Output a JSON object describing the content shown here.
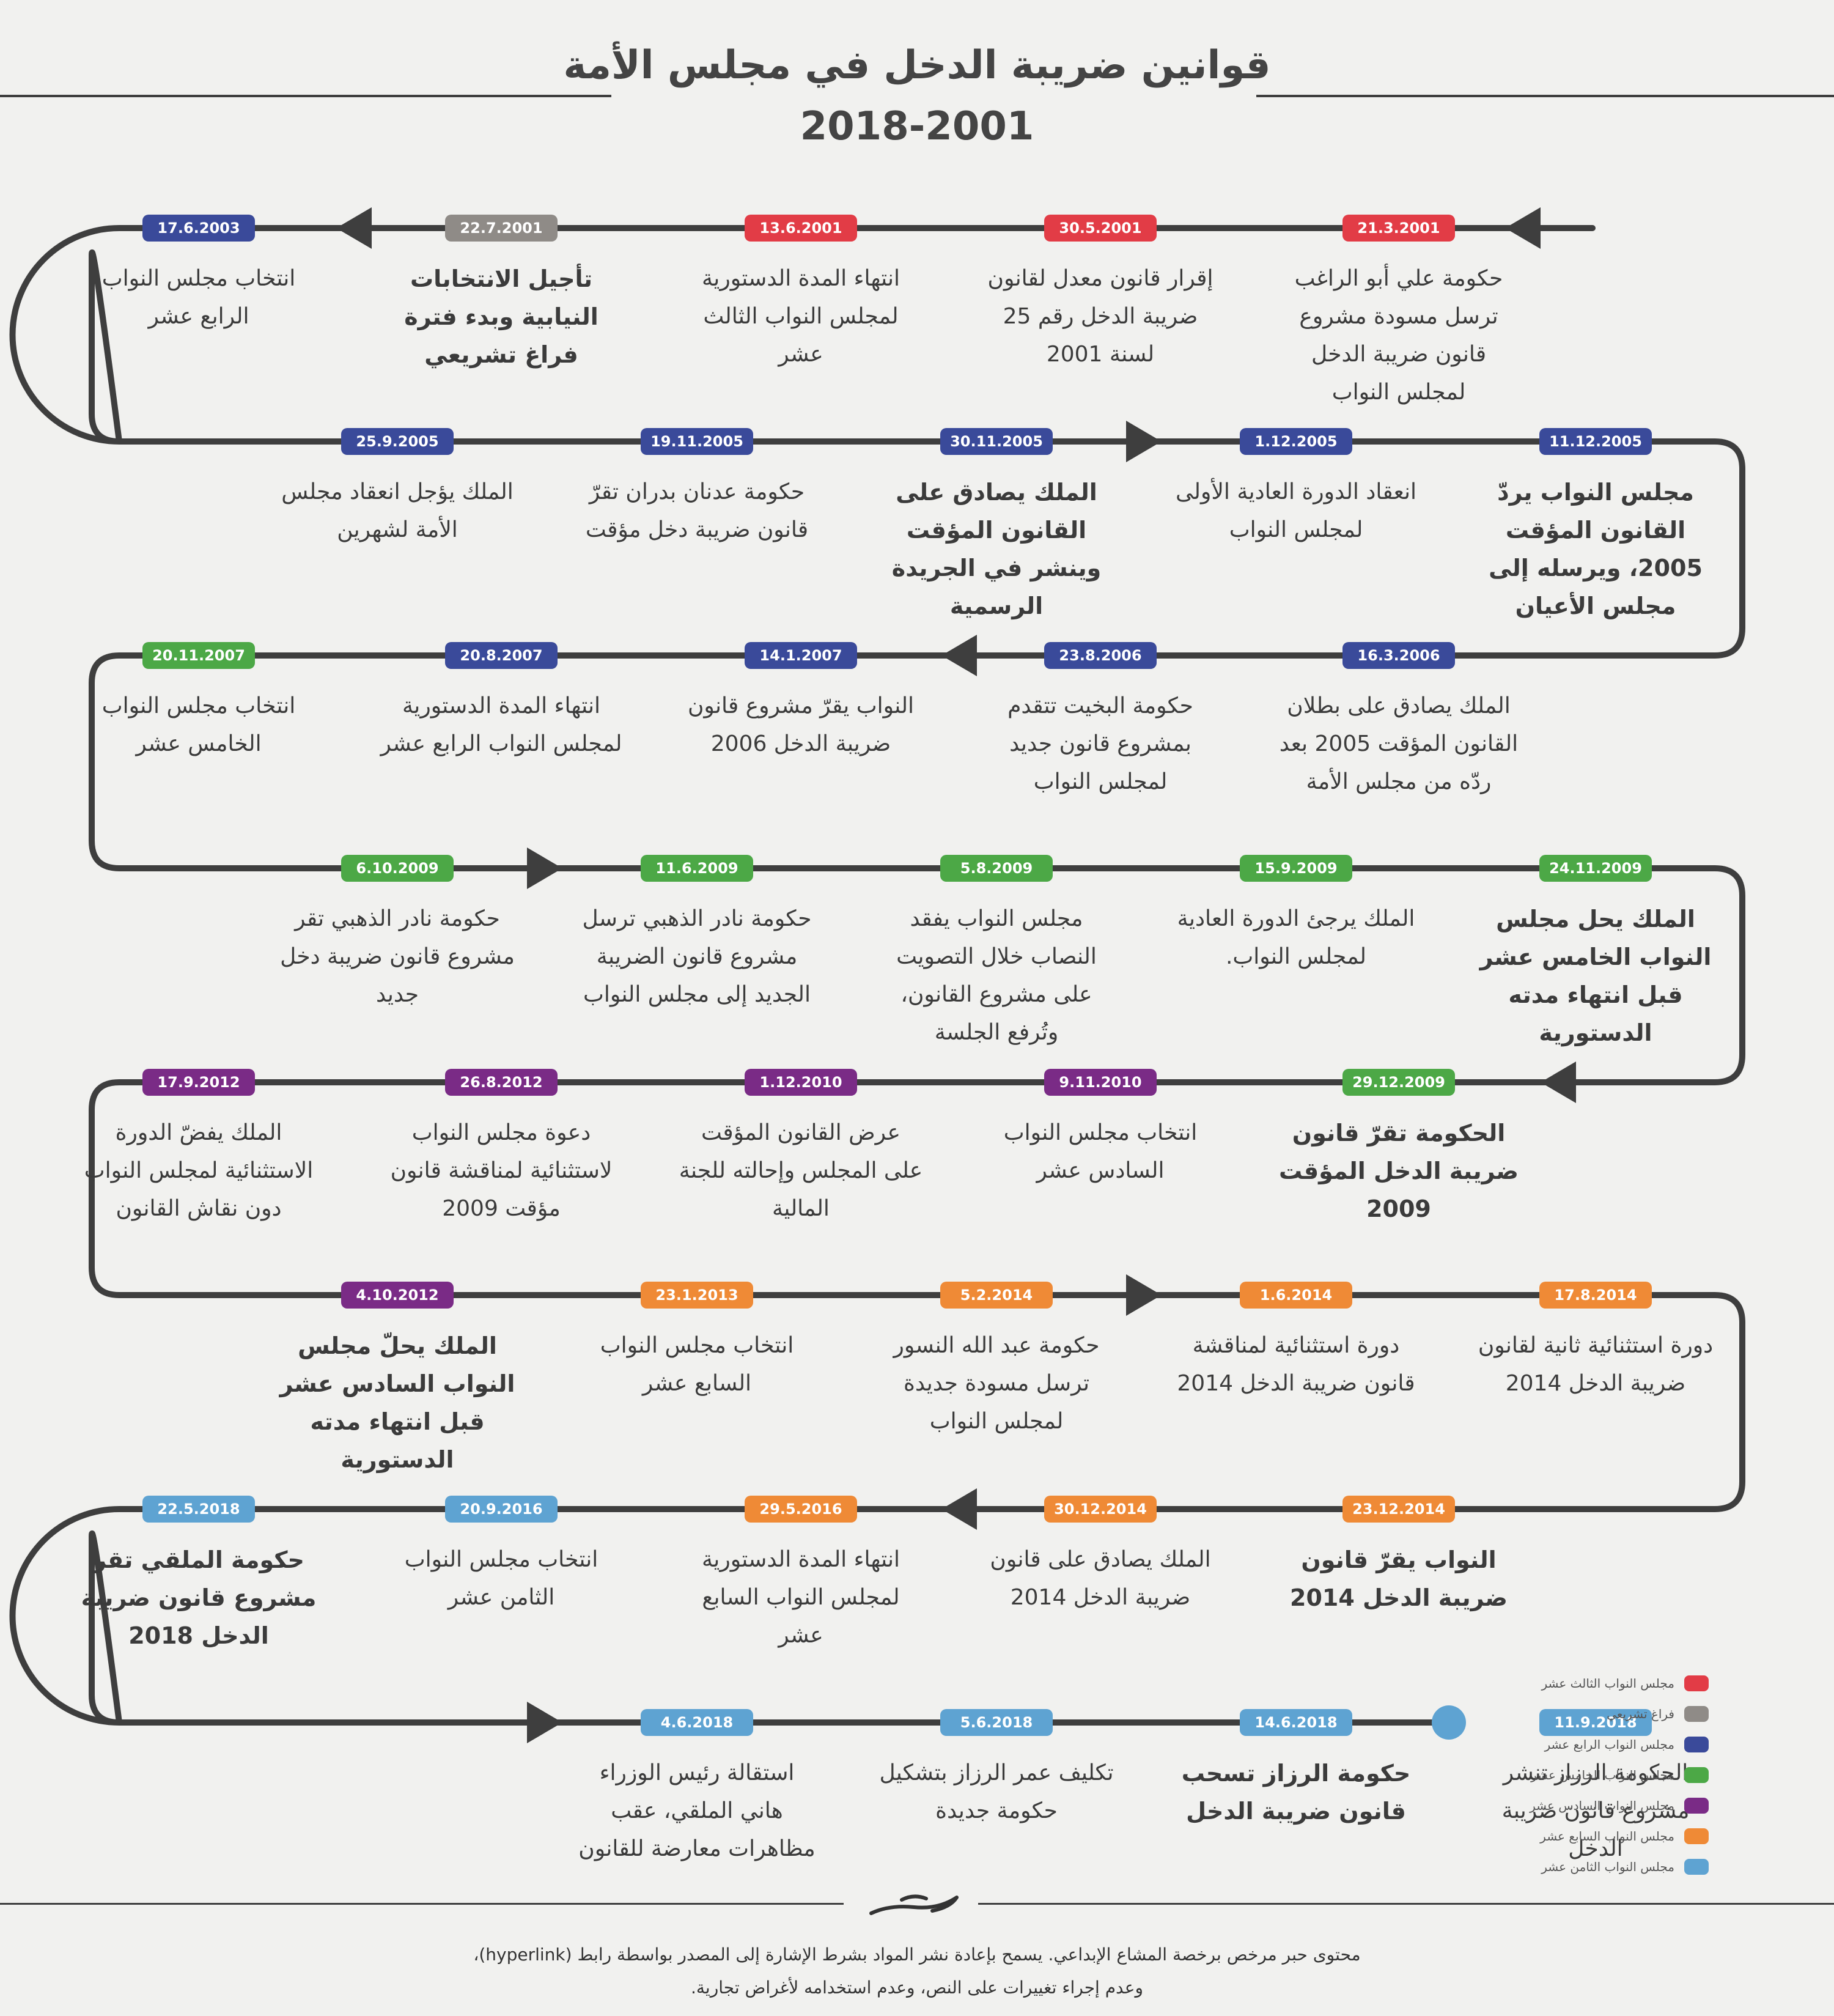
{
  "title_line1": "قوانين ضريبة الدخل في مجلس الأمة",
  "title_line2": "2018-2001",
  "colors": {
    "red": "#e23c46",
    "gray": "#8f8b87",
    "navy": "#3a4a9a",
    "green": "#4ca846",
    "purple": "#7a2b86",
    "orange": "#ef8a36",
    "lightblue": "#5ea3d2"
  },
  "rows": [
    {
      "dir": "left",
      "events": [
        {
          "date": "21.3.2001",
          "color": "red",
          "text": "حكومة علي أبو الراغب ترسل مسودة مشروع قانون ضريبة الدخل لمجلس النواب",
          "bold": false
        },
        {
          "date": "30.5.2001",
          "color": "red",
          "text": "إقرار قانون معدل لقانون ضريبة الدخل رقم 25 لسنة 2001",
          "bold": false
        },
        {
          "date": "13.6.2001",
          "color": "red",
          "text": "انتهاء المدة الدستورية لمجلس النواب الثالث عشر",
          "bold": false
        },
        {
          "date": "22.7.2001",
          "color": "gray",
          "text": "تأجيل الانتخابات النيابية وبدء فترة فراغ تشريعي",
          "bold": true
        },
        {
          "date": "17.6.2003",
          "color": "navy",
          "text": "انتخاب مجلس النواب الرابع عشر",
          "bold": false
        }
      ]
    },
    {
      "dir": "right",
      "events": [
        {
          "date": "11.12.2005",
          "color": "navy",
          "text": "مجلس النواب يردّ القانون المؤقت 2005، ويرسله إلى مجلس الأعيان",
          "bold": true
        },
        {
          "date": "1.12.2005",
          "color": "navy",
          "text": "انعقاد الدورة العادية الأولى لمجلس النواب",
          "bold": false
        },
        {
          "date": "30.11.2005",
          "color": "navy",
          "text": "الملك يصادق على القانون المؤقت وينشر في الجريدة الرسمية",
          "bold": true
        },
        {
          "date": "19.11.2005",
          "color": "navy",
          "text": "حكومة عدنان بدران تقرّ قانون ضريبة دخل مؤقت",
          "bold": false
        },
        {
          "date": "25.9.2005",
          "color": "navy",
          "text": "الملك يؤجل انعقاد مجلس الأمة لشهرين",
          "bold": false
        }
      ]
    },
    {
      "dir": "left",
      "events": [
        {
          "date": "16.3.2006",
          "color": "navy",
          "text": "الملك يصادق على بطلان القانون المؤقت 2005 بعد ردّه من مجلس الأمة",
          "bold": false
        },
        {
          "date": "23.8.2006",
          "color": "navy",
          "text": "حكومة البخيت تتقدم بمشروع قانون جديد لمجلس النواب",
          "bold": false
        },
        {
          "date": "14.1.2007",
          "color": "navy",
          "text": "النواب يقرّ مشروع قانون ضريبة الدخل 2006",
          "bold": false
        },
        {
          "date": "20.8.2007",
          "color": "navy",
          "text": "انتهاء المدة الدستورية لمجلس النواب الرابع عشر",
          "bold": false
        },
        {
          "date": "20.11.2007",
          "color": "green",
          "text": "انتخاب مجلس النواب الخامس عشر",
          "bold": false
        }
      ]
    },
    {
      "dir": "right",
      "events": [
        {
          "date": "24.11.2009",
          "color": "green",
          "text": "الملك يحل مجلس النواب الخامس عشر قبل انتهاء مدته الدستورية",
          "bold": true
        },
        {
          "date": "15.9.2009",
          "color": "green",
          "text": "الملك يرجئ الدورة العادية لمجلس النواب.",
          "bold": false
        },
        {
          "date": "5.8.2009",
          "color": "green",
          "text": "مجلس النواب يفقد النصاب خلال التصويت على مشروع القانون، وتُرفع الجلسة",
          "bold": false
        },
        {
          "date": "11.6.2009",
          "color": "green",
          "text": "حكومة نادر الذهبي ترسل مشروع قانون الضريبة الجديد إلى مجلس النواب",
          "bold": false
        },
        {
          "date": "6.10.2009",
          "color": "green",
          "text": "حكومة نادر الذهبي تقر مشروع قانون ضريبة دخل جديد",
          "bold": false
        }
      ]
    },
    {
      "dir": "left",
      "events": [
        {
          "date": "29.12.2009",
          "color": "green",
          "text": "الحكومة تقرّ قانون ضريبة الدخل المؤقت 2009",
          "bold": true
        },
        {
          "date": "9.11.2010",
          "color": "purple",
          "text": "انتخاب مجلس النواب السادس عشر",
          "bold": false
        },
        {
          "date": "1.12.2010",
          "color": "purple",
          "text": "عرض القانون المؤقت على المجلس وإحالته للجنة المالية",
          "bold": false
        },
        {
          "date": "26.8.2012",
          "color": "purple",
          "text": "دعوة مجلس النواب لاستثنائية لمناقشة قانون مؤقت 2009",
          "bold": false
        },
        {
          "date": "17.9.2012",
          "color": "purple",
          "text": "الملك يفضّ الدورة الاستثنائية لمجلس النواب دون نقاش القانون",
          "bold": false
        }
      ]
    },
    {
      "dir": "right",
      "events": [
        {
          "date": "17.8.2014",
          "color": "orange",
          "text": "دورة استثنائية ثانية لقانون ضريبة الدخل 2014",
          "bold": false
        },
        {
          "date": "1.6.2014",
          "color": "orange",
          "text": "دورة استثنائية لمناقشة قانون ضريبة الدخل 2014",
          "bold": false
        },
        {
          "date": "5.2.2014",
          "color": "orange",
          "text": "حكومة عبد الله النسور ترسل مسودة جديدة لمجلس النواب",
          "bold": false
        },
        {
          "date": "23.1.2013",
          "color": "orange",
          "text": "انتخاب مجلس النواب السابع عشر",
          "bold": false
        },
        {
          "date": "4.10.2012",
          "color": "purple",
          "text": "الملك يحلّ مجلس النواب السادس عشر قبل انتهاء مدته الدستورية",
          "bold": true
        }
      ]
    },
    {
      "dir": "left",
      "events": [
        {
          "date": "23.12.2014",
          "color": "orange",
          "text": "النواب يقرّ قانون ضريبة الدخل 2014",
          "bold": true
        },
        {
          "date": "30.12.2014",
          "color": "orange",
          "text": "الملك يصادق على قانون ضريبة الدخل 2014",
          "bold": false
        },
        {
          "date": "29.5.2016",
          "color": "orange",
          "text": "انتهاء المدة الدستورية لمجلس النواب السابع عشر",
          "bold": false
        },
        {
          "date": "20.9.2016",
          "color": "lightblue",
          "text": "انتخاب مجلس النواب الثامن عشر",
          "bold": false
        },
        {
          "date": "22.5.2018",
          "color": "lightblue",
          "text": "حكومة الملقي تقر مشروع قانون ضريبة الدخل 2018",
          "bold": true
        }
      ]
    },
    {
      "dir": "right",
      "events": [
        {
          "date": "11.9.2018",
          "color": "lightblue",
          "text": "الحكومة الرزاز تنشر مشروع قانون ضريبة الدخل",
          "bold": false
        },
        {
          "date": "14.6.2018",
          "color": "lightblue",
          "text": "حكومة الرزاز تسحب قانون ضريبة الدخل",
          "bold": true
        },
        {
          "date": "5.6.2018",
          "color": "lightblue",
          "text": "تكليف عمر الرزاز بتشكيل حكومة جديدة",
          "bold": false
        },
        {
          "date": "4.6.2018",
          "color": "lightblue",
          "text": "استقالة رئيس الوزراء هاني الملقي، عقب مظاهرات معارضة للقانون",
          "bold": false
        }
      ]
    }
  ],
  "legend": [
    {
      "color": "red",
      "label": "مجلس النواب الثالث عشر"
    },
    {
      "color": "gray",
      "label": "فراغ تشريعي"
    },
    {
      "color": "navy",
      "label": "مجلس النواب الرابع عشر"
    },
    {
      "color": "green",
      "label": "مجلس النواب الخامس عشر"
    },
    {
      "color": "purple",
      "label": "مجلس النواب السادس عشر"
    },
    {
      "color": "orange",
      "label": "مجلس النواب السابع عشر"
    },
    {
      "color": "lightblue",
      "label": "مجلس النواب الثامن عشر"
    }
  ],
  "footer_line1": "محتوى حبر مرخص برخصة المشاع الإبداعي. يسمح بإعادة نشر المواد بشرط الإشارة إلى المصدر بواسطة رابط (hyperlink)،",
  "footer_line2": "وعدم إجراء تغييرات على النص، وعدم استخدامه لأغراض تجارية."
}
